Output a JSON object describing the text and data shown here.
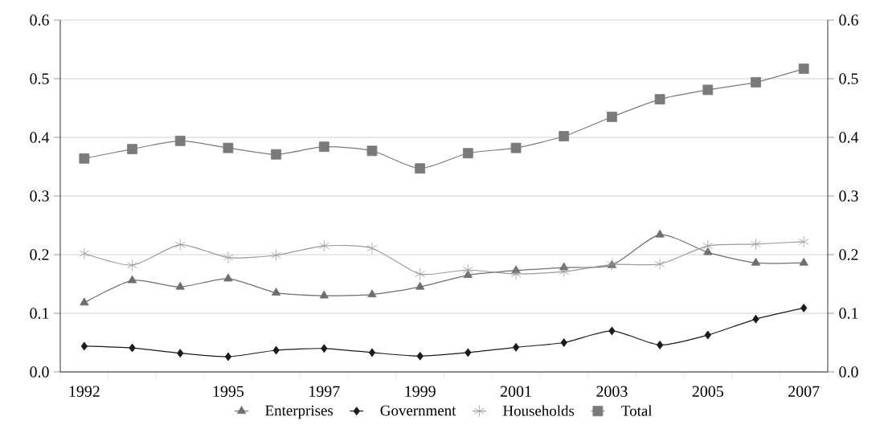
{
  "chart_data": {
    "type": "line",
    "categories": [
      "1992",
      null,
      null,
      "1995",
      null,
      "1997",
      null,
      "1999",
      null,
      "2001",
      null,
      "2003",
      null,
      "2005",
      null,
      "2007"
    ],
    "series": [
      {
        "name": "Enterprises",
        "color": "#6e6e6e",
        "marker": "triangle",
        "values": [
          0.118,
          0.156,
          0.145,
          0.159,
          0.135,
          0.13,
          0.132,
          0.145,
          0.165,
          0.173,
          0.178,
          0.182,
          0.234,
          0.204,
          0.186,
          0.186
        ]
      },
      {
        "name": "Government",
        "color": "#1a1a1a",
        "marker": "diamond",
        "values": [
          0.044,
          0.041,
          0.032,
          0.026,
          0.037,
          0.04,
          0.033,
          0.027,
          0.033,
          0.042,
          0.05,
          0.07,
          0.046,
          0.063,
          0.09,
          0.109
        ]
      },
      {
        "name": "Households",
        "color": "#9a9a9a",
        "marker": "cross",
        "values": [
          0.202,
          0.182,
          0.217,
          0.195,
          0.199,
          0.215,
          0.211,
          0.167,
          0.174,
          0.167,
          0.171,
          0.183,
          0.184,
          0.215,
          0.218,
          0.222
        ]
      },
      {
        "name": "Total",
        "color": "#7a7a7a",
        "marker": "square",
        "values": [
          0.364,
          0.38,
          0.394,
          0.382,
          0.371,
          0.384,
          0.377,
          0.347,
          0.373,
          0.382,
          0.402,
          0.435,
          0.465,
          0.481,
          0.494,
          0.517
        ]
      }
    ],
    "ylim": [
      0,
      0.6
    ],
    "yticks": [
      {
        "value": 0,
        "label": "0.0"
      },
      0.1,
      0.2,
      0.3,
      0.4,
      0.5,
      0.6
    ],
    "y2lim": [
      0,
      0.6
    ],
    "y2ticks": [
      {
        "value": 0,
        "label": "0.0"
      },
      0.1,
      0.2,
      0.3,
      0.4,
      0.5,
      0.6
    ],
    "grid": "y",
    "legend": "bottom"
  }
}
